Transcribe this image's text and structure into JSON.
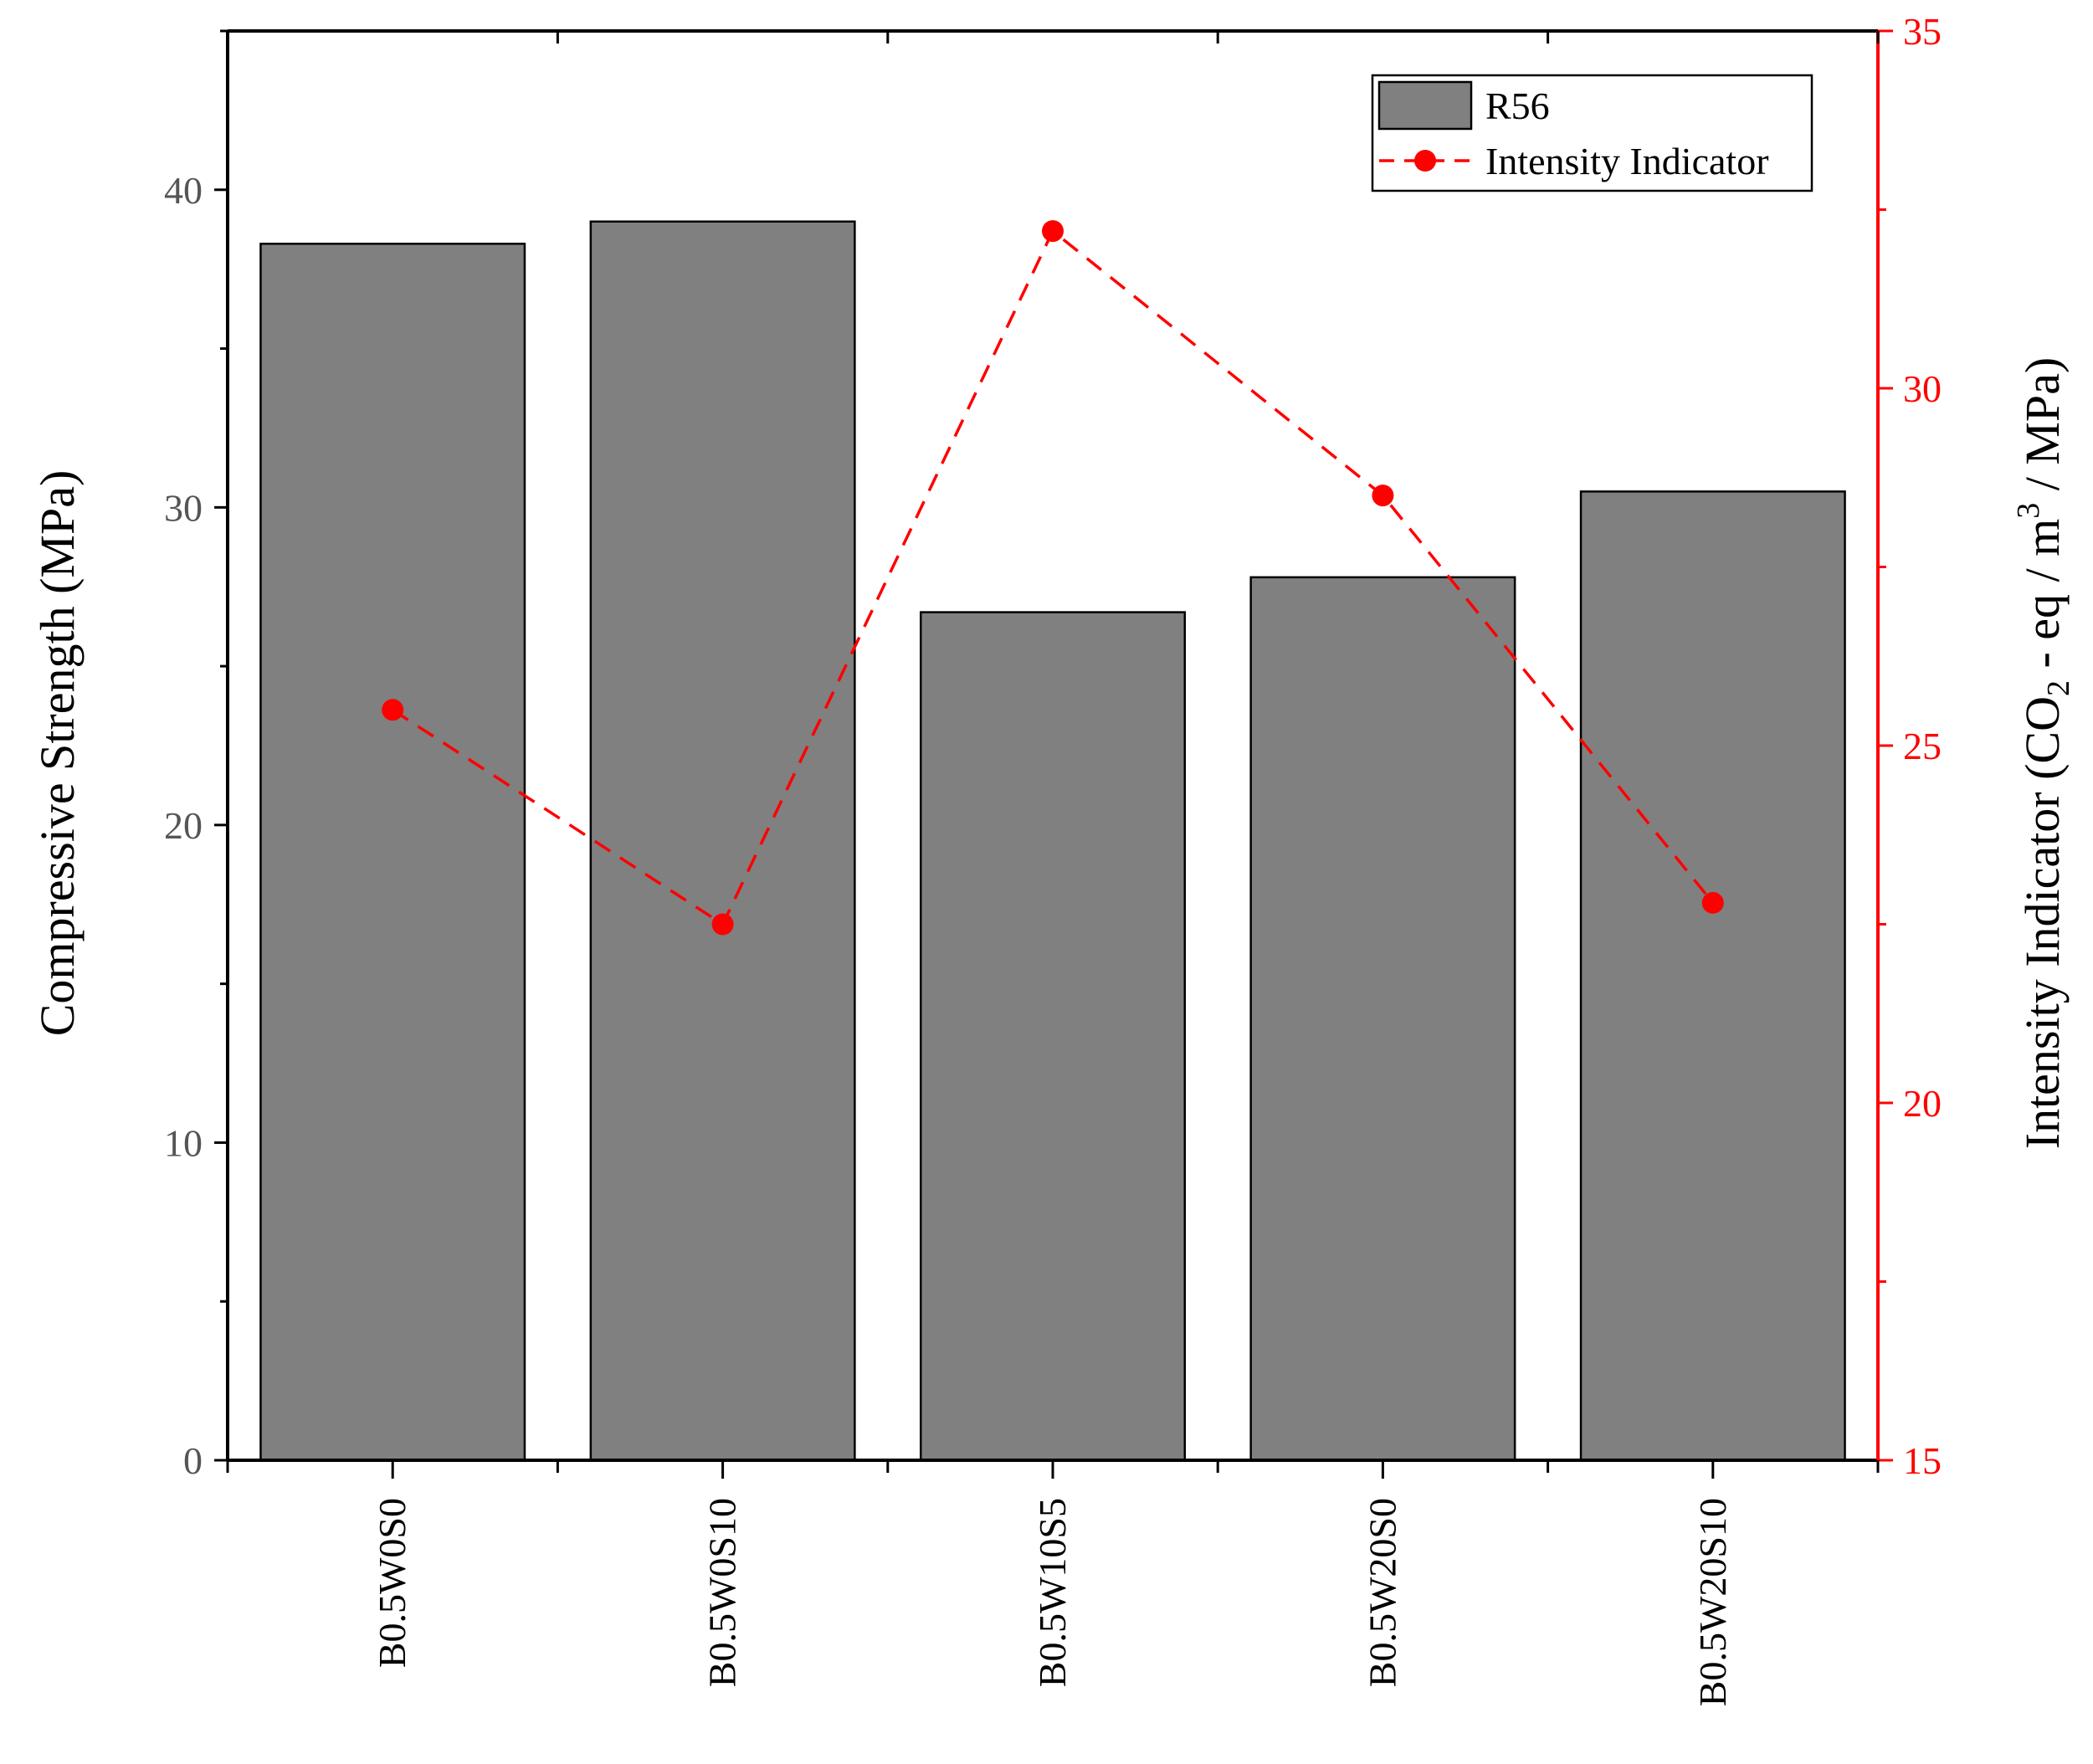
{
  "chart_data": {
    "type": "bar",
    "categories": [
      "B0.5W0S0",
      "B0.5W0S10",
      "B0.5W10S5",
      "B0.5W20S0",
      "B0.5W20S10"
    ],
    "series": [
      {
        "name": "R56",
        "type": "bar",
        "axis": "left",
        "values": [
          38.3,
          39.0,
          26.7,
          27.8,
          30.5
        ]
      },
      {
        "name": "Intensity Indicator",
        "type": "line",
        "axis": "right",
        "style": "dashed",
        "marker": "circle",
        "values": [
          25.5,
          22.5,
          32.2,
          28.5,
          22.8
        ]
      }
    ],
    "ylabel": "Compressive Strength (MPa)",
    "y2label": "Intensity Indicator (CO2 - eq / m3 / MPa)",
    "ylim": [
      0,
      45
    ],
    "y2lim": [
      15,
      35
    ],
    "yticks": [
      0,
      10,
      20,
      30,
      40
    ],
    "y2ticks": [
      15,
      20,
      25,
      30,
      35
    ],
    "legend_position": "top-right",
    "grid": false,
    "colors": {
      "bar": "#808080",
      "line": "#ff0000",
      "axis": "#000000",
      "tick_label": "#555555"
    }
  },
  "labels": {
    "ylabel": "Compressive Strength (MPa)",
    "y2label_prefix": "Intensity Indicator (CO",
    "y2label_sub": "2",
    "y2label_mid": " - eq / m",
    "y2label_sup": "3",
    "y2label_suffix": " / MPa)"
  }
}
